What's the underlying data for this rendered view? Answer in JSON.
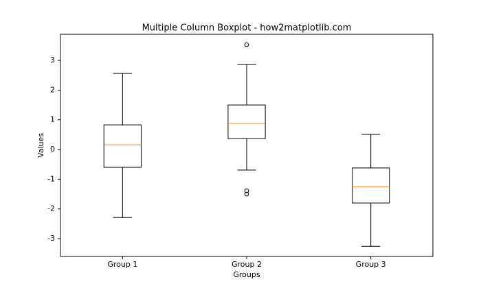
{
  "chart_data": {
    "type": "boxplot",
    "title": "Multiple Column Boxplot - how2matplotlib.com",
    "xlabel": "Groups",
    "ylabel": "Values",
    "categories": [
      "Group 1",
      "Group 2",
      "Group 3"
    ],
    "boxes": [
      {
        "whislo": -2.29,
        "q1": -0.6,
        "med": 0.16,
        "q3": 0.83,
        "whishi": 2.56,
        "fliers": []
      },
      {
        "whislo": -0.69,
        "q1": 0.37,
        "med": 0.88,
        "q3": 1.5,
        "whishi": 2.86,
        "fliers": [
          3.53,
          -1.39,
          -1.5
        ]
      },
      {
        "whislo": -3.26,
        "q1": -1.8,
        "med": -1.25,
        "q3": -0.62,
        "whishi": 0.51,
        "fliers": []
      }
    ],
    "box_color": "#000000",
    "median_color": "#ff7f0e",
    "ylim": [
      -3.6,
      3.88
    ],
    "yticks": [
      -3,
      -2,
      -1,
      0,
      1,
      2,
      3
    ]
  }
}
